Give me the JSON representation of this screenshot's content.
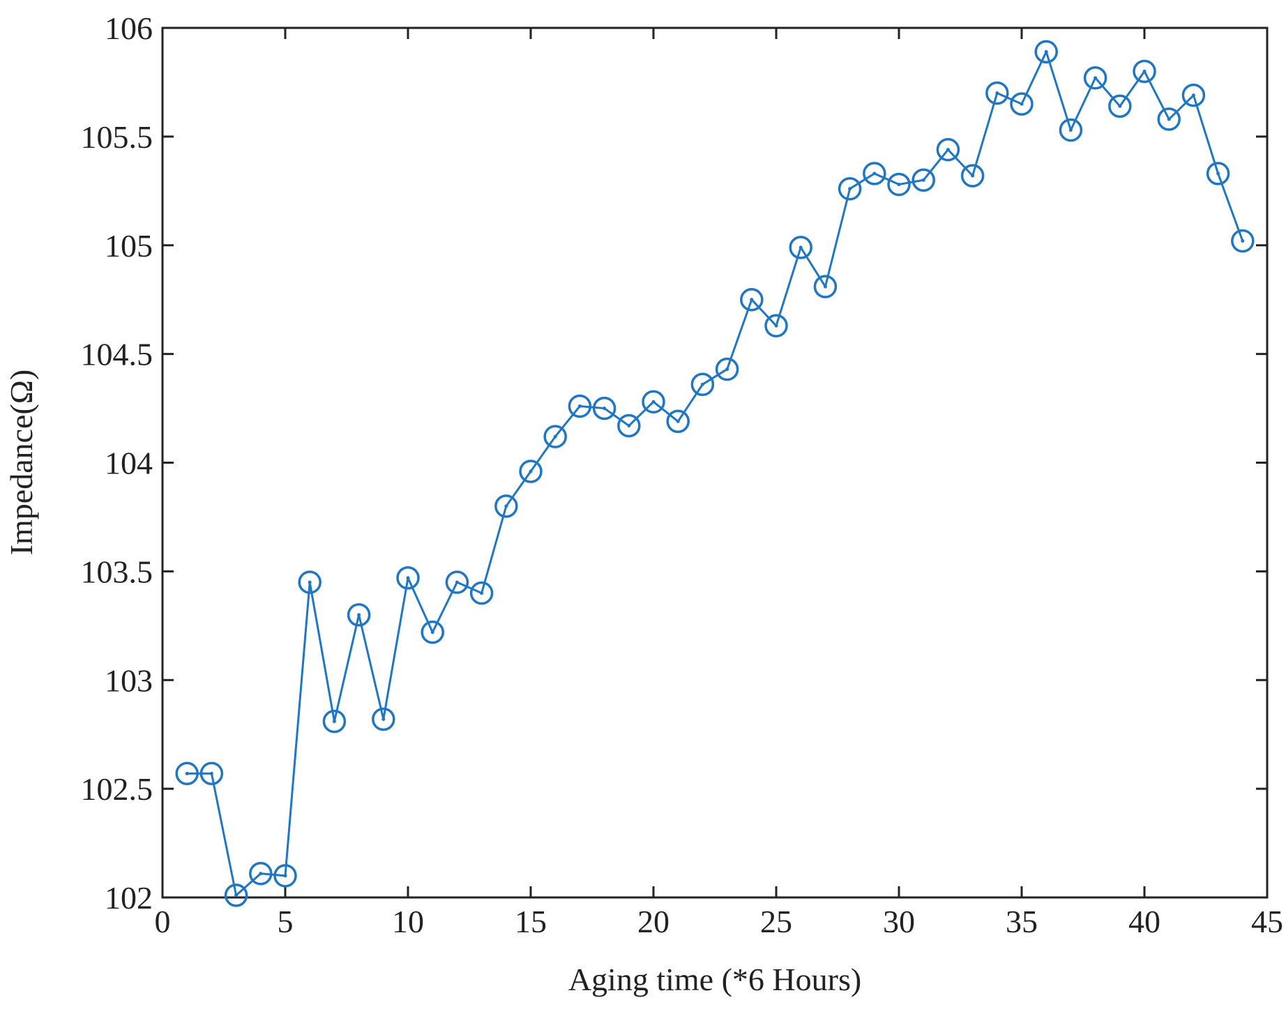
{
  "chart_data": {
    "type": "line",
    "title": "",
    "xlabel": "Aging time (*6 Hours)",
    "ylabel": "Impedance(Ω)",
    "xlim": [
      0,
      45
    ],
    "ylim": [
      102,
      106
    ],
    "xticks": [
      0,
      5,
      10,
      15,
      20,
      25,
      30,
      35,
      40,
      45
    ],
    "yticks": [
      102,
      102.5,
      103,
      103.5,
      104,
      104.5,
      105,
      105.5,
      106
    ],
    "grid": false,
    "line_color": "#1f77c4",
    "marker": "circle",
    "x": [
      1,
      2,
      3,
      4,
      5,
      6,
      7,
      8,
      9,
      10,
      11,
      12,
      13,
      14,
      15,
      16,
      17,
      18,
      19,
      20,
      21,
      22,
      23,
      24,
      25,
      26,
      27,
      28,
      29,
      30,
      31,
      32,
      33,
      34,
      35,
      36,
      37,
      38,
      39,
      40,
      41,
      42,
      43,
      44
    ],
    "values": [
      102.57,
      102.57,
      102.01,
      102.11,
      102.1,
      103.45,
      102.81,
      103.3,
      102.82,
      103.47,
      103.22,
      103.45,
      103.4,
      103.8,
      103.96,
      104.12,
      104.26,
      104.25,
      104.17,
      104.28,
      104.19,
      104.36,
      104.43,
      104.75,
      104.63,
      104.99,
      104.81,
      105.26,
      105.33,
      105.28,
      105.3,
      105.44,
      105.32,
      105.7,
      105.65,
      105.89,
      105.53,
      105.77,
      105.64,
      105.8,
      105.58,
      105.69,
      105.33,
      105.02
    ]
  }
}
